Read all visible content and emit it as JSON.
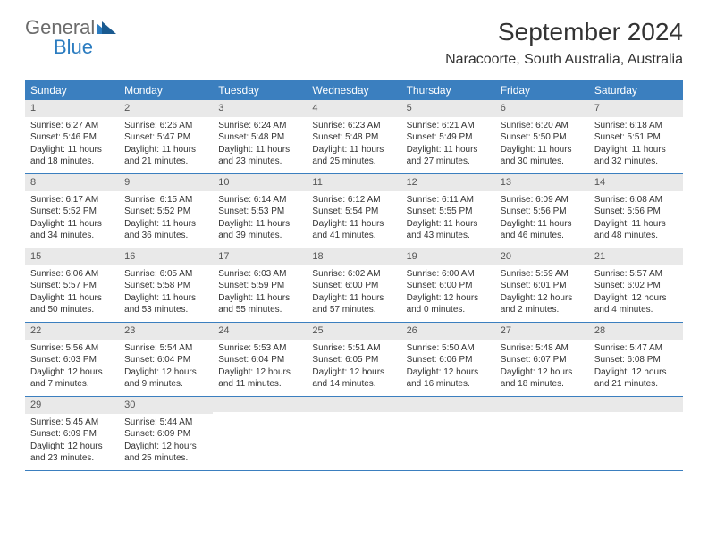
{
  "logo": {
    "text1": "General",
    "text2": "Blue"
  },
  "title": "September 2024",
  "location": "Naracoorte, South Australia, Australia",
  "colors": {
    "header_bg": "#3b7fbf",
    "daynum_bg": "#e9e9e9",
    "logo_blue": "#2b7cc0",
    "logo_gray": "#6b6b6b",
    "border": "#3b7fbf",
    "text": "#333333",
    "bg": "#ffffff"
  },
  "typography": {
    "title_fontsize": 28,
    "location_fontsize": 16,
    "dow_fontsize": 12,
    "daynum_fontsize": 11,
    "cell_fontsize": 10
  },
  "dow": [
    "Sunday",
    "Monday",
    "Tuesday",
    "Wednesday",
    "Thursday",
    "Friday",
    "Saturday"
  ],
  "weeks": [
    [
      {
        "n": "1",
        "sr": "Sunrise: 6:27 AM",
        "ss": "Sunset: 5:46 PM",
        "d1": "Daylight: 11 hours",
        "d2": "and 18 minutes."
      },
      {
        "n": "2",
        "sr": "Sunrise: 6:26 AM",
        "ss": "Sunset: 5:47 PM",
        "d1": "Daylight: 11 hours",
        "d2": "and 21 minutes."
      },
      {
        "n": "3",
        "sr": "Sunrise: 6:24 AM",
        "ss": "Sunset: 5:48 PM",
        "d1": "Daylight: 11 hours",
        "d2": "and 23 minutes."
      },
      {
        "n": "4",
        "sr": "Sunrise: 6:23 AM",
        "ss": "Sunset: 5:48 PM",
        "d1": "Daylight: 11 hours",
        "d2": "and 25 minutes."
      },
      {
        "n": "5",
        "sr": "Sunrise: 6:21 AM",
        "ss": "Sunset: 5:49 PM",
        "d1": "Daylight: 11 hours",
        "d2": "and 27 minutes."
      },
      {
        "n": "6",
        "sr": "Sunrise: 6:20 AM",
        "ss": "Sunset: 5:50 PM",
        "d1": "Daylight: 11 hours",
        "d2": "and 30 minutes."
      },
      {
        "n": "7",
        "sr": "Sunrise: 6:18 AM",
        "ss": "Sunset: 5:51 PM",
        "d1": "Daylight: 11 hours",
        "d2": "and 32 minutes."
      }
    ],
    [
      {
        "n": "8",
        "sr": "Sunrise: 6:17 AM",
        "ss": "Sunset: 5:52 PM",
        "d1": "Daylight: 11 hours",
        "d2": "and 34 minutes."
      },
      {
        "n": "9",
        "sr": "Sunrise: 6:15 AM",
        "ss": "Sunset: 5:52 PM",
        "d1": "Daylight: 11 hours",
        "d2": "and 36 minutes."
      },
      {
        "n": "10",
        "sr": "Sunrise: 6:14 AM",
        "ss": "Sunset: 5:53 PM",
        "d1": "Daylight: 11 hours",
        "d2": "and 39 minutes."
      },
      {
        "n": "11",
        "sr": "Sunrise: 6:12 AM",
        "ss": "Sunset: 5:54 PM",
        "d1": "Daylight: 11 hours",
        "d2": "and 41 minutes."
      },
      {
        "n": "12",
        "sr": "Sunrise: 6:11 AM",
        "ss": "Sunset: 5:55 PM",
        "d1": "Daylight: 11 hours",
        "d2": "and 43 minutes."
      },
      {
        "n": "13",
        "sr": "Sunrise: 6:09 AM",
        "ss": "Sunset: 5:56 PM",
        "d1": "Daylight: 11 hours",
        "d2": "and 46 minutes."
      },
      {
        "n": "14",
        "sr": "Sunrise: 6:08 AM",
        "ss": "Sunset: 5:56 PM",
        "d1": "Daylight: 11 hours",
        "d2": "and 48 minutes."
      }
    ],
    [
      {
        "n": "15",
        "sr": "Sunrise: 6:06 AM",
        "ss": "Sunset: 5:57 PM",
        "d1": "Daylight: 11 hours",
        "d2": "and 50 minutes."
      },
      {
        "n": "16",
        "sr": "Sunrise: 6:05 AM",
        "ss": "Sunset: 5:58 PM",
        "d1": "Daylight: 11 hours",
        "d2": "and 53 minutes."
      },
      {
        "n": "17",
        "sr": "Sunrise: 6:03 AM",
        "ss": "Sunset: 5:59 PM",
        "d1": "Daylight: 11 hours",
        "d2": "and 55 minutes."
      },
      {
        "n": "18",
        "sr": "Sunrise: 6:02 AM",
        "ss": "Sunset: 6:00 PM",
        "d1": "Daylight: 11 hours",
        "d2": "and 57 minutes."
      },
      {
        "n": "19",
        "sr": "Sunrise: 6:00 AM",
        "ss": "Sunset: 6:00 PM",
        "d1": "Daylight: 12 hours",
        "d2": "and 0 minutes."
      },
      {
        "n": "20",
        "sr": "Sunrise: 5:59 AM",
        "ss": "Sunset: 6:01 PM",
        "d1": "Daylight: 12 hours",
        "d2": "and 2 minutes."
      },
      {
        "n": "21",
        "sr": "Sunrise: 5:57 AM",
        "ss": "Sunset: 6:02 PM",
        "d1": "Daylight: 12 hours",
        "d2": "and 4 minutes."
      }
    ],
    [
      {
        "n": "22",
        "sr": "Sunrise: 5:56 AM",
        "ss": "Sunset: 6:03 PM",
        "d1": "Daylight: 12 hours",
        "d2": "and 7 minutes."
      },
      {
        "n": "23",
        "sr": "Sunrise: 5:54 AM",
        "ss": "Sunset: 6:04 PM",
        "d1": "Daylight: 12 hours",
        "d2": "and 9 minutes."
      },
      {
        "n": "24",
        "sr": "Sunrise: 5:53 AM",
        "ss": "Sunset: 6:04 PM",
        "d1": "Daylight: 12 hours",
        "d2": "and 11 minutes."
      },
      {
        "n": "25",
        "sr": "Sunrise: 5:51 AM",
        "ss": "Sunset: 6:05 PM",
        "d1": "Daylight: 12 hours",
        "d2": "and 14 minutes."
      },
      {
        "n": "26",
        "sr": "Sunrise: 5:50 AM",
        "ss": "Sunset: 6:06 PM",
        "d1": "Daylight: 12 hours",
        "d2": "and 16 minutes."
      },
      {
        "n": "27",
        "sr": "Sunrise: 5:48 AM",
        "ss": "Sunset: 6:07 PM",
        "d1": "Daylight: 12 hours",
        "d2": "and 18 minutes."
      },
      {
        "n": "28",
        "sr": "Sunrise: 5:47 AM",
        "ss": "Sunset: 6:08 PM",
        "d1": "Daylight: 12 hours",
        "d2": "and 21 minutes."
      }
    ],
    [
      {
        "n": "29",
        "sr": "Sunrise: 5:45 AM",
        "ss": "Sunset: 6:09 PM",
        "d1": "Daylight: 12 hours",
        "d2": "and 23 minutes."
      },
      {
        "n": "30",
        "sr": "Sunrise: 5:44 AM",
        "ss": "Sunset: 6:09 PM",
        "d1": "Daylight: 12 hours",
        "d2": "and 25 minutes."
      },
      null,
      null,
      null,
      null,
      null
    ]
  ]
}
